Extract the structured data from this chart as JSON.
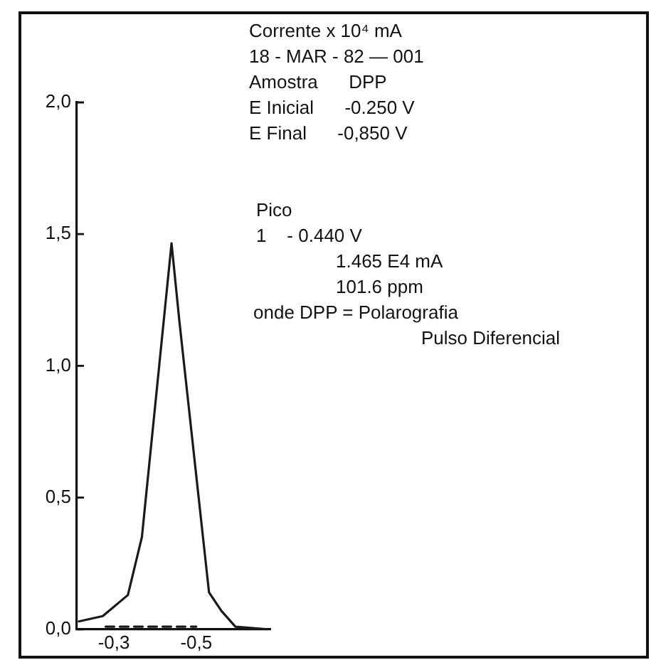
{
  "chart_data": {
    "type": "line",
    "annotations": [
      "Corrente x 10⁴ mA",
      "18 - MAR - 82 — 001",
      "Amostra      DPP",
      "E Inicial      -0.250 V",
      "E Final      -0,850 V",
      "Pico",
      "1    - 0.440 V",
      "1.465 E4 mA",
      "101.6 ppm",
      "onde DPP = Polarografia",
      "Pulso Diferencial"
    ],
    "series": [
      {
        "color": "#1a1a1a",
        "x": [
          -0.215,
          -0.273,
          -0.334,
          -0.368,
          -0.44,
          -0.459,
          -0.531,
          -0.561,
          -0.595,
          -0.673
        ],
        "values": [
          0.03,
          0.05,
          0.13,
          0.35,
          1.465,
          1.17,
          0.14,
          0.07,
          0.01,
          0
        ]
      },
      {
        "color": "#1a1a1a",
        "line_style": "dashed",
        "x": [
          -0.28,
          -0.5
        ],
        "values": [
          0.01,
          0.01
        ]
      }
    ],
    "xlim": [
      -0.21,
      -0.68
    ],
    "xticks": [
      {
        "value": -0.3,
        "label": "-0,3"
      },
      {
        "value": -0.5,
        "label": "-0,5"
      }
    ],
    "ylim": [
      0,
      2
    ],
    "yticks": [
      {
        "value": 0,
        "label": "0,0"
      },
      {
        "value": 0.5,
        "label": "0,5"
      },
      {
        "value": 1,
        "label": "1,0"
      },
      {
        "value": 1.5,
        "label": "1,5"
      },
      {
        "value": 2,
        "label": "2,0"
      }
    ],
    "grid": false,
    "legend": false,
    "marker": "none",
    "line_style": "solid"
  }
}
